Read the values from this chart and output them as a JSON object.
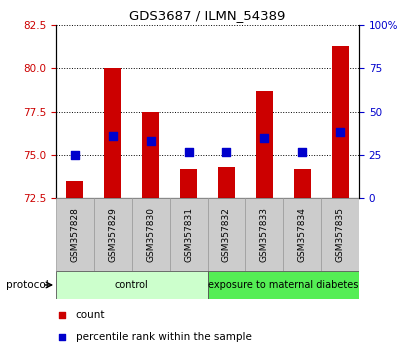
{
  "title": "GDS3687 / ILMN_54389",
  "samples": [
    "GSM357828",
    "GSM357829",
    "GSM357830",
    "GSM357831",
    "GSM357832",
    "GSM357833",
    "GSM357834",
    "GSM357835"
  ],
  "count_values": [
    73.5,
    80.0,
    77.5,
    74.2,
    74.3,
    78.7,
    74.2,
    81.3
  ],
  "percentile_values": [
    25.0,
    36.0,
    33.0,
    26.5,
    26.5,
    35.0,
    26.5,
    38.0
  ],
  "ylim_left": [
    72.5,
    82.5
  ],
  "ylim_right": [
    0,
    100
  ],
  "yticks_left": [
    72.5,
    75.0,
    77.5,
    80.0,
    82.5
  ],
  "yticks_right": [
    0,
    25,
    50,
    75,
    100
  ],
  "ytick_labels_right": [
    "0",
    "25",
    "50",
    "75",
    "100%"
  ],
  "bar_bottom": 72.5,
  "bar_color": "#cc0000",
  "dot_color": "#0000cc",
  "grid_color": "#000000",
  "protocol_groups": [
    {
      "label": "control",
      "start": 0,
      "end": 4,
      "color": "#ccffcc"
    },
    {
      "label": "exposure to maternal diabetes",
      "start": 4,
      "end": 8,
      "color": "#55ee55"
    }
  ],
  "protocol_label": "protocol",
  "legend_items": [
    {
      "label": "count",
      "color": "#cc0000"
    },
    {
      "label": "percentile rank within the sample",
      "color": "#0000cc"
    }
  ],
  "left_tick_color": "#cc0000",
  "right_tick_color": "#0000cc",
  "bar_width": 0.45,
  "dot_size": 30,
  "xticklabel_bg": "#cccccc",
  "xticklabel_border": "#999999"
}
